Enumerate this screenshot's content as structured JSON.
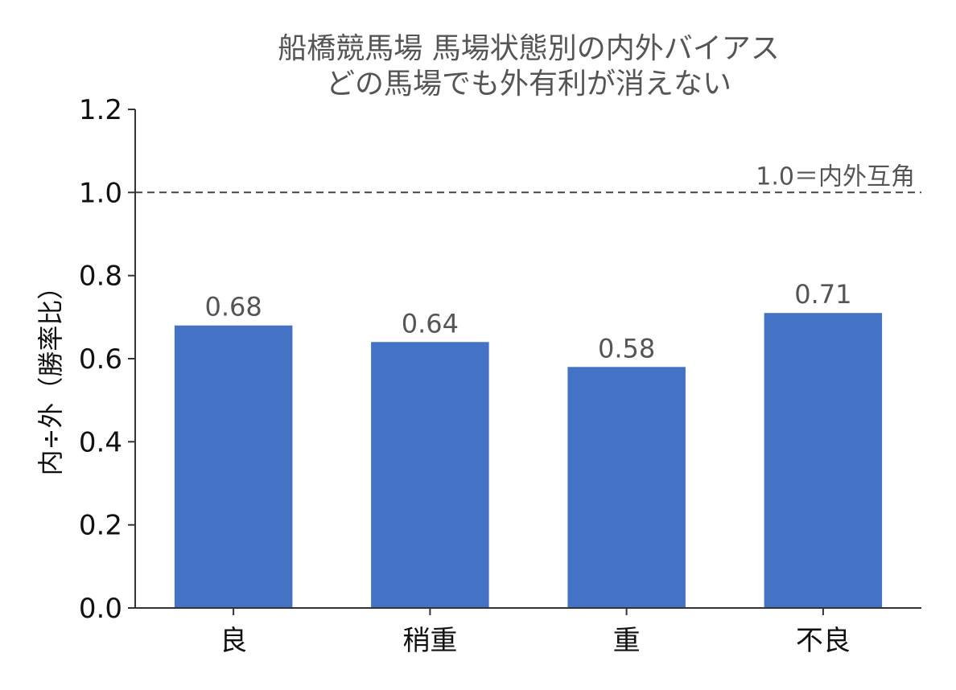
{
  "chart_data": {
    "type": "bar",
    "title_lines": [
      "船橋競馬場 馬場状態別の内外バイアス",
      "どの馬場でも外有利が消えない"
    ],
    "ylabel": "内÷外（勝率比）",
    "xlabel": "",
    "categories": [
      "良",
      "稍重",
      "重",
      "不良"
    ],
    "values": [
      0.68,
      0.64,
      0.58,
      0.71
    ],
    "value_labels": [
      "0.68",
      "0.64",
      "0.58",
      "0.71"
    ],
    "ylim": [
      0,
      1.2
    ],
    "yticks": [
      0.0,
      0.2,
      0.4,
      0.6,
      0.8,
      1.0,
      1.2
    ],
    "ytick_labels": [
      "0.0",
      "0.2",
      "0.4",
      "0.6",
      "0.8",
      "1.0",
      "1.2"
    ],
    "reference_line": {
      "value": 1.0,
      "label": "1.0＝内外互角",
      "style": "dashed"
    },
    "bar_color": "#4472c4",
    "grid": false,
    "legend": "none"
  }
}
